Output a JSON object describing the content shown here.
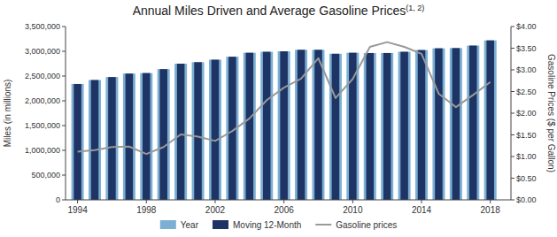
{
  "chart_data": {
    "type": "bar",
    "title": "Annual Miles Driven and Average Gasoline Prices",
    "annotations": [
      "(1, 2)"
    ],
    "ylabel": "Miles (in millions)",
    "y2label": "Gasoline Prices ($ per Gallon)",
    "x": [
      1994,
      1995,
      1996,
      1997,
      1998,
      1999,
      2000,
      2001,
      2002,
      2003,
      2004,
      2005,
      2006,
      2007,
      2008,
      2009,
      2010,
      2011,
      2012,
      2013,
      2014,
      2015,
      2016,
      2017,
      2018
    ],
    "series": [
      {
        "name": "Year",
        "type": "bar",
        "color": "#7bafd4",
        "values": [
          2340000,
          2420000,
          2480000,
          2550000,
          2560000,
          2640000,
          2750000,
          2780000,
          2830000,
          2890000,
          2970000,
          2990000,
          3000000,
          3030000,
          3030000,
          2950000,
          2970000,
          2965000,
          2965000,
          2990000,
          3025000,
          3060000,
          3065000,
          3115000,
          3220000
        ]
      },
      {
        "name": "Moving 12-Month",
        "type": "bar",
        "color": "#1e3464",
        "values": [
          2340000,
          2420000,
          2480000,
          2550000,
          2560000,
          2640000,
          2750000,
          2780000,
          2830000,
          2890000,
          2970000,
          2990000,
          3000000,
          3030000,
          3030000,
          2950000,
          2970000,
          2965000,
          2965000,
          2990000,
          3025000,
          3060000,
          3065000,
          3115000,
          3220000
        ]
      },
      {
        "name": "Gasoline prices",
        "type": "line",
        "color": "#999999",
        "axis": "y2",
        "values": [
          1.11,
          1.15,
          1.22,
          1.23,
          1.06,
          1.22,
          1.51,
          1.46,
          1.36,
          1.59,
          1.88,
          2.3,
          2.59,
          2.8,
          3.27,
          2.35,
          2.79,
          3.53,
          3.64,
          3.53,
          3.37,
          2.45,
          2.14,
          2.42,
          2.72
        ]
      }
    ],
    "xlim": [
      1993.3,
      2019.2
    ],
    "xticks": [
      1994,
      1998,
      2002,
      2006,
      2010,
      2014,
      2018
    ],
    "ylim": [
      0,
      3500000
    ],
    "yticks": [
      0,
      {
        "value": 500000,
        "label": "500,000"
      },
      {
        "value": 1000000,
        "label": "1,000,000"
      },
      {
        "value": 1500000,
        "label": "1,500,000"
      },
      {
        "value": 2000000,
        "label": "2,000,000"
      },
      {
        "value": 2500000,
        "label": "2,500,000"
      },
      {
        "value": 3000000,
        "label": "3,000,000"
      },
      {
        "value": 3500000,
        "label": "3,500,000"
      }
    ],
    "y2lim": [
      0,
      4.0
    ],
    "y2ticks": [
      {
        "value": 0.0,
        "label": "$0.00"
      },
      {
        "value": 0.5,
        "label": "$0.50"
      },
      {
        "value": 1.0,
        "label": "$1.00"
      },
      {
        "value": 1.5,
        "label": "$1.50"
      },
      {
        "value": 2.0,
        "label": "$2.00"
      },
      {
        "value": 2.5,
        "label": "$2.50"
      },
      {
        "value": 3.0,
        "label": "$3.00"
      },
      {
        "value": 3.5,
        "label": "$3.50"
      },
      {
        "value": 4.0,
        "label": "$4.00"
      }
    ],
    "grid": false,
    "legend": "bottom"
  }
}
